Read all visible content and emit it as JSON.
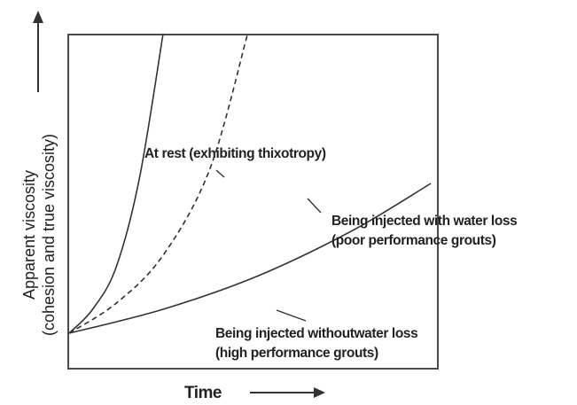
{
  "chart_data": {
    "type": "line",
    "title": "",
    "xlabel": "Time",
    "ylabel": [
      "Apparent viscosity",
      "(cohesion and true viscosity)"
    ],
    "ticks": "none",
    "grid": false,
    "legend": "none",
    "series": [
      {
        "name": "At rest (exhibiting thixotropy)",
        "style": "solid",
        "points": [
          [
            0,
            0
          ],
          [
            0.25,
            0.08
          ],
          [
            0.5,
            0.22
          ],
          [
            0.75,
            0.52
          ],
          [
            1.0,
            1.0
          ]
        ]
      },
      {
        "name": "Being injected with water loss (poor performance grouts)",
        "style": "dashed",
        "points": [
          [
            0,
            0
          ],
          [
            0.5,
            0.1
          ],
          [
            1.0,
            0.26
          ],
          [
            1.5,
            0.55
          ],
          [
            1.9,
            1.0
          ]
        ]
      },
      {
        "name": "Being injected withoutwater loss (high performance grouts)",
        "style": "solid",
        "points": [
          [
            0,
            0
          ],
          [
            1.0,
            0.08
          ],
          [
            2.0,
            0.19
          ],
          [
            3.0,
            0.34
          ],
          [
            3.85,
            0.5
          ]
        ]
      }
    ],
    "annotations": [
      {
        "lines": [
          "At rest (exhibiting thixotropy)"
        ]
      },
      {
        "lines": [
          "Being injected with water loss",
          "(poor performance grouts)"
        ]
      },
      {
        "lines": [
          "Being injected withoutwater loss",
          "(high performance grouts)"
        ]
      }
    ],
    "colors": {
      "curve": "#333333",
      "frame": "#4a4a4a",
      "text": "#222222"
    }
  }
}
